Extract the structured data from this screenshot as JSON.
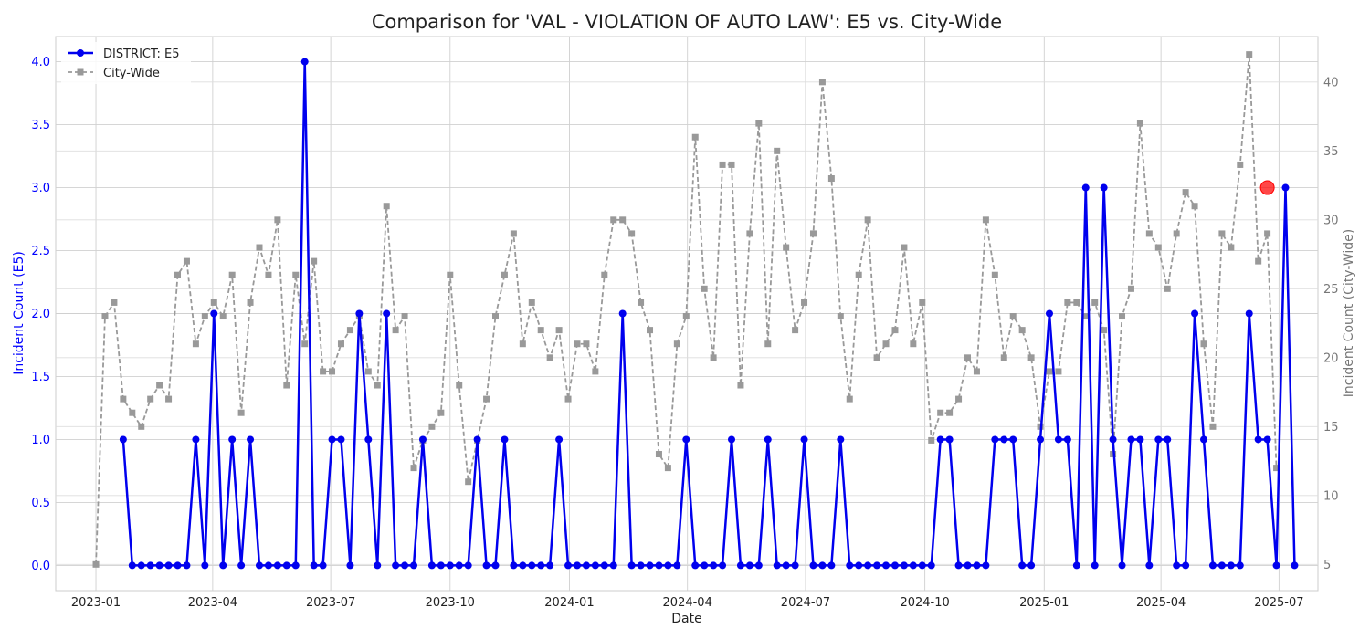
{
  "chart_data": {
    "type": "line",
    "title": "Comparison for 'VAL - VIOLATION OF AUTO LAW': E5 vs. City-Wide",
    "xlabel": "Date",
    "ylabel_left": "Incident Count (E5)",
    "ylabel_right": "Incident Count (City-Wide)",
    "ylim_left": [
      -0.2,
      4.2
    ],
    "ylim_right": [
      3.1,
      43.3
    ],
    "x_range": [
      "2022-12-01",
      "2025-07-31"
    ],
    "grid": true,
    "legend_position": "top-left",
    "x_ticks": [
      "2023-01",
      "2023-04",
      "2023-07",
      "2023-10",
      "2024-01",
      "2024-04",
      "2024-07",
      "2024-10",
      "2025-01",
      "2025-04",
      "2025-07"
    ],
    "y_ticks_left": [
      "0.0",
      "0.5",
      "1.0",
      "1.5",
      "2.0",
      "2.5",
      "3.0",
      "3.5",
      "4.0"
    ],
    "y_ticks_right": [
      "5",
      "10",
      "15",
      "20",
      "25",
      "30",
      "35",
      "40"
    ],
    "colors": {
      "district": "#0000ee",
      "citywide": "#999999",
      "highlight": "#ff0000",
      "left_axis_text": "#0000ff",
      "right_axis_text": "#777777"
    },
    "series": [
      {
        "name": "DISTRICT: E5",
        "axis": "left",
        "style": "solid-circle",
        "start_date": "2023-01-22",
        "interval_days": 7,
        "values": [
          1,
          0,
          0,
          0,
          0,
          0,
          0,
          0,
          1,
          0,
          2,
          0,
          1,
          0,
          1,
          0,
          0,
          0,
          0,
          0,
          4,
          0,
          0,
          1,
          1,
          0,
          2,
          1,
          0,
          2,
          0,
          0,
          0,
          1,
          0,
          0,
          0,
          0,
          0,
          1,
          0,
          0,
          1,
          0,
          0,
          0,
          0,
          0,
          1,
          0,
          0,
          0,
          0,
          0,
          0,
          2,
          0,
          0,
          0,
          0,
          0,
          0,
          1,
          0,
          0,
          0,
          0,
          1,
          0,
          0,
          0,
          1,
          0,
          0,
          0,
          1,
          0,
          0,
          0,
          1,
          0,
          0,
          0,
          0,
          0,
          0,
          0,
          0,
          0,
          0,
          1,
          1,
          0,
          0,
          0,
          0,
          1,
          1,
          1,
          0,
          0,
          1,
          2,
          1,
          1,
          0,
          3,
          0,
          3,
          1,
          0,
          1,
          1,
          0,
          1,
          1,
          0,
          0,
          2,
          1,
          0,
          0,
          0,
          0,
          2,
          1,
          1,
          0,
          3,
          0
        ]
      },
      {
        "name": "City-Wide",
        "axis": "right",
        "style": "dashed-square",
        "start_date": "2023-01-01",
        "interval_days": 7,
        "values": [
          5,
          23,
          24,
          17,
          16,
          15,
          17,
          18,
          17,
          26,
          27,
          21,
          23,
          24,
          23,
          26,
          16,
          24,
          28,
          26,
          30,
          18,
          26,
          21,
          27,
          19,
          19,
          21,
          22,
          23,
          19,
          18,
          31,
          22,
          23,
          12,
          14,
          15,
          16,
          26,
          18,
          11,
          14,
          17,
          23,
          26,
          29,
          21,
          24,
          22,
          20,
          22,
          17,
          21,
          21,
          19,
          26,
          30,
          30,
          29,
          24,
          22,
          13,
          12,
          21,
          23,
          36,
          25,
          20,
          34,
          34,
          18,
          29,
          37,
          21,
          35,
          28,
          22,
          24,
          29,
          40,
          33,
          23,
          17,
          26,
          30,
          20,
          21,
          22,
          28,
          21,
          24,
          14,
          16,
          16,
          17,
          20,
          19,
          30,
          26,
          20,
          23,
          22,
          20,
          15,
          19,
          19,
          24,
          24,
          23,
          24,
          22,
          13,
          23,
          25,
          37,
          29,
          28,
          25,
          29,
          32,
          31,
          21,
          15,
          29,
          28,
          34,
          42,
          27,
          29,
          12
        ]
      }
    ],
    "highlight_point": {
      "date": "2025-06-22",
      "value": 3
    }
  }
}
